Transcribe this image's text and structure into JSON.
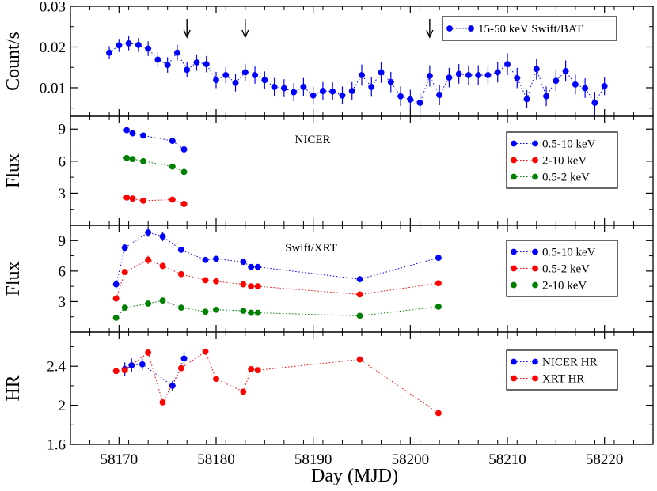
{
  "colors": {
    "blue": "#0000ff",
    "red": "#ff0000",
    "green": "#008000",
    "black": "#000000"
  },
  "chart_data": {
    "type": "scatter",
    "xlabel": "Day (MJD)",
    "xlim": [
      58165,
      58225
    ],
    "x_ticks": [
      58170,
      58180,
      58190,
      58200,
      58210,
      58220
    ],
    "x_tick_labels": [
      "58170",
      "58180",
      "58190",
      "58200",
      "58210",
      "58220"
    ],
    "panels": [
      {
        "id": "bat",
        "title": "",
        "ylabel": "Count/s",
        "ylim": [
          0.003,
          0.03
        ],
        "y_ticks": [
          0.01,
          0.02,
          0.03
        ],
        "y_tick_labels": [
          "0.01",
          "0.02",
          "0.03"
        ],
        "legend_position": "top-right",
        "arrows_at_mjd": [
          58177,
          58183,
          58202
        ],
        "series": [
          {
            "name": "15-50 keV Swift/BAT",
            "color": "#0000ff",
            "x": [
              58169,
              58170,
              58171,
              58172,
              58173,
              58174,
              58175,
              58176,
              58177,
              58178,
              58179,
              58180,
              58181,
              58182,
              58183,
              58184,
              58185,
              58186,
              58187,
              58188,
              58189,
              58190,
              58191,
              58192,
              58193,
              58194,
              58195,
              58196,
              58197,
              58198,
              58199,
              58200,
              58201,
              58202,
              58203,
              58204,
              58205,
              58206,
              58207,
              58208,
              58209,
              58210,
              58211,
              58212,
              58213,
              58214,
              58215,
              58216,
              58217,
              58218,
              58219,
              58220
            ],
            "y": [
              0.0186,
              0.0204,
              0.0209,
              0.0205,
              0.0196,
              0.0169,
              0.0156,
              0.0186,
              0.0144,
              0.0162,
              0.0158,
              0.0119,
              0.0131,
              0.0112,
              0.0138,
              0.0131,
              0.0119,
              0.0102,
              0.0099,
              0.0089,
              0.0102,
              0.0081,
              0.0092,
              0.0091,
              0.0081,
              0.0092,
              0.0131,
              0.0102,
              0.0138,
              0.0114,
              0.0079,
              0.0071,
              0.0063,
              0.0129,
              0.0082,
              0.0125,
              0.0134,
              0.0131,
              0.0131,
              0.0131,
              0.0138,
              0.0158,
              0.0124,
              0.0072,
              0.0146,
              0.0079,
              0.0117,
              0.0141,
              0.0108,
              0.0099,
              0.0063,
              0.0104
            ],
            "yerr": [
              0.0016,
              0.0016,
              0.0017,
              0.0017,
              0.0018,
              0.0018,
              0.0019,
              0.0019,
              0.0019,
              0.002,
              0.002,
              0.002,
              0.002,
              0.0021,
              0.0021,
              0.0021,
              0.0021,
              0.0022,
              0.0022,
              0.0022,
              0.0022,
              0.0022,
              0.0022,
              0.0022,
              0.0022,
              0.0022,
              0.0026,
              0.0024,
              0.0026,
              0.0025,
              0.0024,
              0.0024,
              0.0024,
              0.0026,
              0.0025,
              0.0024,
              0.0024,
              0.0024,
              0.0024,
              0.0024,
              0.0025,
              0.0027,
              0.0025,
              0.0022,
              0.0026,
              0.0024,
              0.0026,
              0.0026,
              0.0024,
              0.0024,
              0.0027,
              0.0022
            ]
          }
        ]
      },
      {
        "id": "nicer",
        "title": "NICER",
        "ylabel": "Flux",
        "ylim": [
          0,
          10.2
        ],
        "y_ticks": [
          3,
          6,
          9
        ],
        "y_tick_labels": [
          "3",
          "6",
          "9"
        ],
        "legend_position": "top-right",
        "series": [
          {
            "name": "0.5-10 keV",
            "color": "#0000ff",
            "x": [
              58170.8,
              58171.4,
              58172.5,
              58175.5,
              58176.7
            ],
            "y": [
              8.9,
              8.6,
              8.4,
              7.9,
              7.1
            ],
            "yerr": [
              0.15,
              0.15,
              0.15,
              0.15,
              0.15
            ]
          },
          {
            "name": "2-10 keV",
            "color": "#ff0000",
            "x": [
              58170.8,
              58171.4,
              58172.5,
              58175.5,
              58176.7
            ],
            "y": [
              2.6,
              2.5,
              2.3,
              2.4,
              2.0
            ],
            "yerr": [
              0.25,
              0.25,
              0.25,
              0.25,
              0.25
            ]
          },
          {
            "name": "0.5-2 keV",
            "color": "#008000",
            "x": [
              58170.8,
              58171.4,
              58172.5,
              58175.5,
              58176.7
            ],
            "y": [
              6.3,
              6.2,
              6.0,
              5.5,
              5.0
            ],
            "yerr": [
              0.2,
              0.2,
              0.2,
              0.2,
              0.2
            ]
          }
        ]
      },
      {
        "id": "xrt",
        "title": "Swift/XRT",
        "ylabel": "Flux",
        "ylim": [
          0,
          10.5
        ],
        "y_ticks": [
          3,
          6,
          9
        ],
        "y_tick_labels": [
          "3",
          "6",
          "9"
        ],
        "legend_position": "top-right",
        "series": [
          {
            "name": "0.5-10 keV",
            "color": "#0000ff",
            "x": [
              58169.7,
              58170.6,
              58173.0,
              58174.5,
              58176.4,
              58178.9,
              58180.0,
              58182.8,
              58183.6,
              58184.3,
              58194.8,
              58202.9
            ],
            "y": [
              4.7,
              8.3,
              9.8,
              9.4,
              8.1,
              7.1,
              7.2,
              6.9,
              6.4,
              6.4,
              5.2,
              7.3
            ],
            "yerr": [
              0.4,
              0.4,
              0.45,
              0.45,
              0.3,
              0.3,
              0.3,
              0.3,
              0.3,
              0.3,
              0.3,
              0.3
            ]
          },
          {
            "name": "0.5-2 keV",
            "color": "#ff0000",
            "x": [
              58169.7,
              58170.6,
              58173.0,
              58174.5,
              58176.4,
              58178.9,
              58180.0,
              58182.8,
              58183.6,
              58184.3,
              58194.8,
              58202.9
            ],
            "y": [
              3.3,
              5.9,
              7.1,
              6.5,
              5.7,
              5.1,
              5.0,
              4.7,
              4.5,
              4.5,
              3.7,
              4.8
            ],
            "yerr": [
              0.3,
              0.3,
              0.4,
              0.3,
              0.25,
              0.25,
              0.25,
              0.25,
              0.25,
              0.25,
              0.25,
              0.25
            ]
          },
          {
            "name": "2-10 keV",
            "color": "#008000",
            "x": [
              58169.7,
              58170.6,
              58173.0,
              58174.5,
              58176.4,
              58178.9,
              58180.0,
              58182.8,
              58183.6,
              58184.3,
              58194.8,
              58202.9
            ],
            "y": [
              1.4,
              2.4,
              2.8,
              3.1,
              2.4,
              2.0,
              2.2,
              2.1,
              1.9,
              1.9,
              1.6,
              2.5
            ],
            "yerr": [
              0.25,
              0.25,
              0.25,
              0.25,
              0.25,
              0.25,
              0.25,
              0.25,
              0.25,
              0.25,
              0.2,
              0.2
            ]
          }
        ]
      },
      {
        "id": "hr",
        "title": "",
        "ylabel": "HR",
        "ylim": [
          1.6,
          2.75
        ],
        "y_ticks": [
          1.6,
          2,
          2.4
        ],
        "y_tick_labels": [
          "1.6",
          "2",
          "2.4"
        ],
        "legend_position": "top-right",
        "series": [
          {
            "name": "NICER HR",
            "color": "#0000ff",
            "x": [
              58170.6,
              58171.3,
              58172.4,
              58175.5,
              58176.7
            ],
            "y": [
              2.37,
              2.41,
              2.42,
              2.2,
              2.48
            ],
            "yerr": [
              0.07,
              0.07,
              0.06,
              0.05,
              0.07
            ]
          },
          {
            "name": "XRT HR",
            "color": "#ff0000",
            "x": [
              58169.7,
              58170.6,
              58173.0,
              58174.5,
              58176.4,
              58178.9,
              58180.0,
              58182.8,
              58183.6,
              58184.3,
              58194.8,
              58202.9
            ],
            "y": [
              2.35,
              2.36,
              2.54,
              2.03,
              2.38,
              2.55,
              2.27,
              2.14,
              2.37,
              2.36,
              2.47,
              1.92
            ],
            "yerr": [
              0,
              0,
              0,
              0,
              0,
              0,
              0,
              0,
              0,
              0,
              0,
              0
            ]
          }
        ]
      }
    ]
  }
}
